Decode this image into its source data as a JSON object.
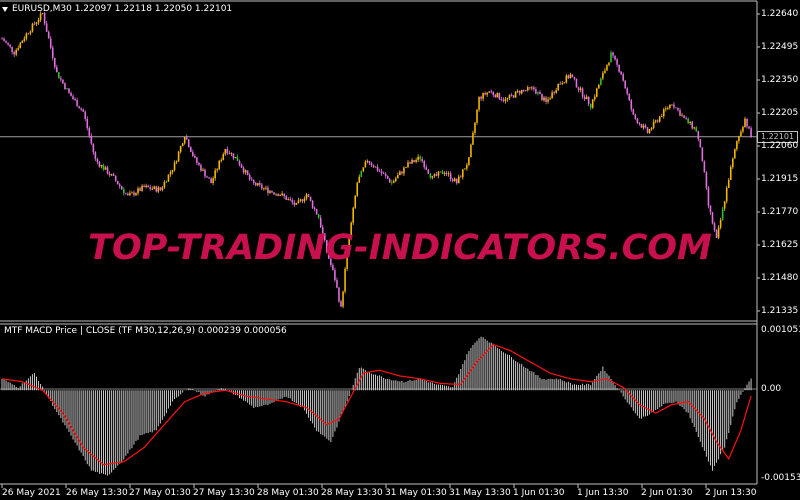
{
  "header": {
    "symbol_line": "EURUSD,M30  1.22097 1.22118 1.22050 1.22101"
  },
  "indicator": {
    "title_line": "MTF MACD Price | CLOSE  (TF M30,12,26,9) 0.000239 0.000056"
  },
  "watermark": "TOP-TRADING-INDICATORS.COM",
  "colors": {
    "background": "#000000",
    "bull_candle": "#f5b800",
    "bear_candle": "#e070e0",
    "green_candle": "#30c030",
    "grid_line": "#c0c0c0",
    "macd_histogram": "#c8c8c8",
    "signal_line": "#ff1010",
    "watermark": "#c8104e"
  },
  "price_axis": {
    "labels": [
      "1.22640",
      "1.22495",
      "1.22350",
      "1.22205",
      "1.22060",
      "1.21915",
      "1.21770",
      "1.21625",
      "1.21480",
      "1.21335"
    ],
    "current_price": "1.22101"
  },
  "indicator_axis": {
    "labels": [
      "0.001053",
      "0.00",
      "-0.001533"
    ]
  },
  "time_axis": {
    "labels": [
      "26 May 2021",
      "26 May 13:30",
      "27 May 01:30",
      "27 May 13:30",
      "28 May 01:30",
      "28 May 13:30",
      "31 May 01:30",
      "31 May 13:30",
      "1 Jun 01:30",
      "1 Jun 13:30",
      "2 Jun 01:30",
      "2 Jun 13:30"
    ]
  },
  "chart_data": [
    {
      "type": "candlestick",
      "title": "EURUSD,M30",
      "ylim": [
        1.213,
        1.2269
      ],
      "keypoints": [
        [
          0,
          1.2253
        ],
        [
          6,
          1.2247
        ],
        [
          12,
          1.2255
        ],
        [
          20,
          1.2264
        ],
        [
          27,
          1.2238
        ],
        [
          33,
          1.2229
        ],
        [
          40,
          1.2221
        ],
        [
          46,
          1.22
        ],
        [
          55,
          1.2192
        ],
        [
          62,
          1.2184
        ],
        [
          70,
          1.2188
        ],
        [
          78,
          1.2187
        ],
        [
          85,
          1.2198
        ],
        [
          90,
          1.2211
        ],
        [
          95,
          1.22
        ],
        [
          103,
          1.219
        ],
        [
          110,
          1.2205
        ],
        [
          116,
          1.22
        ],
        [
          123,
          1.219
        ],
        [
          130,
          1.2187
        ],
        [
          137,
          1.2185
        ],
        [
          145,
          1.218
        ],
        [
          150,
          1.2185
        ],
        [
          156,
          1.2175
        ],
        [
          160,
          1.216
        ],
        [
          164,
          1.2148
        ],
        [
          167,
          1.2135
        ],
        [
          170,
          1.216
        ],
        [
          175,
          1.219
        ],
        [
          180,
          1.22
        ],
        [
          186,
          1.2195
        ],
        [
          192,
          1.219
        ],
        [
          200,
          1.2198
        ],
        [
          206,
          1.2201
        ],
        [
          212,
          1.2192
        ],
        [
          218,
          1.2195
        ],
        [
          224,
          1.219
        ],
        [
          230,
          1.22
        ],
        [
          235,
          1.2227
        ],
        [
          240,
          1.223
        ],
        [
          248,
          1.2226
        ],
        [
          255,
          1.223
        ],
        [
          262,
          1.2231
        ],
        [
          268,
          1.2225
        ],
        [
          274,
          1.2233
        ],
        [
          280,
          1.2237
        ],
        [
          285,
          1.223
        ],
        [
          290,
          1.2224
        ],
        [
          295,
          1.2235
        ],
        [
          300,
          1.2246
        ],
        [
          305,
          1.2238
        ],
        [
          311,
          1.2219
        ],
        [
          318,
          1.2212
        ],
        [
          325,
          1.222
        ],
        [
          330,
          1.2225
        ],
        [
          336,
          1.2218
        ],
        [
          342,
          1.2213
        ],
        [
          345,
          1.22
        ],
        [
          348,
          1.218
        ],
        [
          352,
          1.2165
        ],
        [
          355,
          1.2178
        ],
        [
          358,
          1.2192
        ],
        [
          362,
          1.2208
        ],
        [
          366,
          1.2218
        ],
        [
          369,
          1.22101
        ]
      ]
    },
    {
      "type": "bar",
      "title": "MTF MACD Price | CLOSE (TF M30,12,26,9)",
      "ylim": [
        -0.001533,
        0.001053
      ],
      "histogram_keypoints": [
        [
          0,
          0.0002
        ],
        [
          8,
          5e-05
        ],
        [
          16,
          0.0003
        ],
        [
          24,
          -0.0002
        ],
        [
          34,
          -0.0008
        ],
        [
          44,
          -0.0014
        ],
        [
          52,
          -0.0015
        ],
        [
          60,
          -0.0012
        ],
        [
          68,
          -0.0008
        ],
        [
          76,
          -0.0007
        ],
        [
          84,
          -0.0002
        ],
        [
          92,
          5e-05
        ],
        [
          100,
          -0.0001
        ],
        [
          108,
          5e-05
        ],
        [
          116,
          -0.0001
        ],
        [
          124,
          -0.0003
        ],
        [
          132,
          -0.00025
        ],
        [
          140,
          -0.0001
        ],
        [
          148,
          -0.0003
        ],
        [
          155,
          -0.0007
        ],
        [
          162,
          -0.0009
        ],
        [
          170,
          -0.0002
        ],
        [
          176,
          0.0004
        ],
        [
          182,
          0.0003
        ],
        [
          190,
          0.0002
        ],
        [
          198,
          0.00015
        ],
        [
          206,
          0.0002
        ],
        [
          214,
          0.0001
        ],
        [
          222,
          5e-05
        ],
        [
          230,
          0.0007
        ],
        [
          236,
          0.00095
        ],
        [
          242,
          0.0008
        ],
        [
          250,
          0.0006
        ],
        [
          258,
          0.0004
        ],
        [
          266,
          0.0002
        ],
        [
          274,
          0.0002
        ],
        [
          282,
          0.0001
        ],
        [
          290,
          0.0001
        ],
        [
          296,
          0.0004
        ],
        [
          302,
          0.0001
        ],
        [
          308,
          -0.0002
        ],
        [
          314,
          -0.0005
        ],
        [
          320,
          -0.0004
        ],
        [
          326,
          -0.00025
        ],
        [
          332,
          -0.0002
        ],
        [
          338,
          -0.0004
        ],
        [
          344,
          -0.0009
        ],
        [
          350,
          -0.0014
        ],
        [
          356,
          -0.001
        ],
        [
          362,
          -0.0002
        ],
        [
          369,
          0.0002
        ]
      ],
      "signal_keypoints": [
        [
          0,
          0.0002
        ],
        [
          10,
          0.00015
        ],
        [
          20,
          0.0
        ],
        [
          30,
          -0.0004
        ],
        [
          40,
          -0.001
        ],
        [
          50,
          -0.0013
        ],
        [
          60,
          -0.00125
        ],
        [
          70,
          -0.001
        ],
        [
          80,
          -0.0006
        ],
        [
          90,
          -0.0002
        ],
        [
          100,
          -5e-05
        ],
        [
          110,
          0.0
        ],
        [
          120,
          -0.0001
        ],
        [
          130,
          -0.00015
        ],
        [
          140,
          -0.0002
        ],
        [
          150,
          -0.0003
        ],
        [
          160,
          -0.0006
        ],
        [
          166,
          -0.0005
        ],
        [
          172,
          -0.0001
        ],
        [
          178,
          0.0003
        ],
        [
          186,
          0.00035
        ],
        [
          196,
          0.00025
        ],
        [
          206,
          0.0002
        ],
        [
          216,
          0.00012
        ],
        [
          226,
          0.0001
        ],
        [
          234,
          0.0005
        ],
        [
          242,
          0.0008
        ],
        [
          250,
          0.0007
        ],
        [
          260,
          0.0005
        ],
        [
          270,
          0.0003
        ],
        [
          280,
          0.0002
        ],
        [
          290,
          0.00015
        ],
        [
          298,
          0.0002
        ],
        [
          306,
          5e-05
        ],
        [
          314,
          -0.00025
        ],
        [
          322,
          -0.0004
        ],
        [
          330,
          -0.00025
        ],
        [
          338,
          -0.0002
        ],
        [
          346,
          -0.0005
        ],
        [
          352,
          -0.0009
        ],
        [
          358,
          -0.0012
        ],
        [
          364,
          -0.0007
        ],
        [
          369,
          -0.0001
        ]
      ]
    }
  ]
}
